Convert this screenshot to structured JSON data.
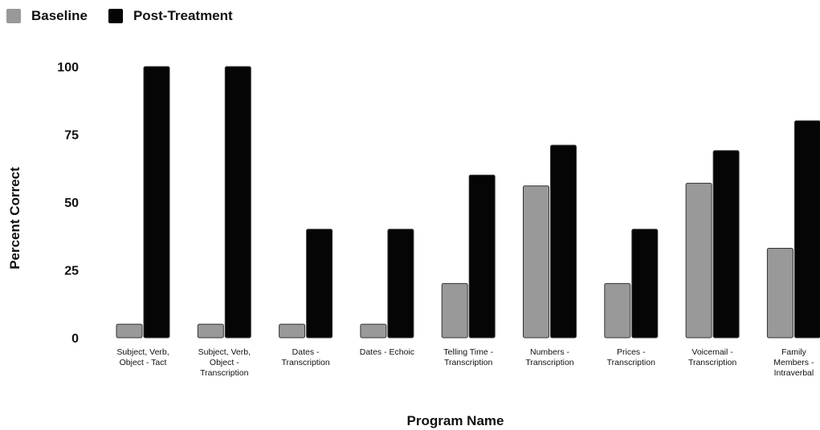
{
  "legend": {
    "items": [
      {
        "label": "Baseline",
        "color": "#999999"
      },
      {
        "label": "Post-Treatment",
        "color": "#050505"
      }
    ]
  },
  "chart_data": {
    "type": "bar",
    "categories": [
      [
        "Subject, Verb,",
        "Object - Tact"
      ],
      [
        "Subject, Verb,",
        "Object -",
        "Transcription"
      ],
      [
        "Dates -",
        "Transcription"
      ],
      [
        "Dates - Echoic"
      ],
      [
        "Telling Time -",
        "Transcription"
      ],
      [
        "Numbers -",
        "Transcription"
      ],
      [
        "Prices -",
        "Transcription"
      ],
      [
        "Voicemail -",
        "Transcription"
      ],
      [
        "Family",
        "Members -",
        "Intraverbal"
      ]
    ],
    "series": [
      {
        "name": "Baseline",
        "color": "#999999",
        "values": [
          5,
          5,
          5,
          5,
          20,
          56,
          20,
          57,
          33
        ]
      },
      {
        "name": "Post-Treatment",
        "color": "#050505",
        "values": [
          100,
          100,
          40,
          40,
          60,
          71,
          40,
          69,
          80
        ]
      }
    ],
    "yticks": [
      0,
      25,
      50,
      75,
      100
    ],
    "ylim": [
      0,
      100
    ],
    "xlabel": "Program Name",
    "ylabel": "Percent Correct",
    "grid": false,
    "legend_position": "top-left"
  }
}
